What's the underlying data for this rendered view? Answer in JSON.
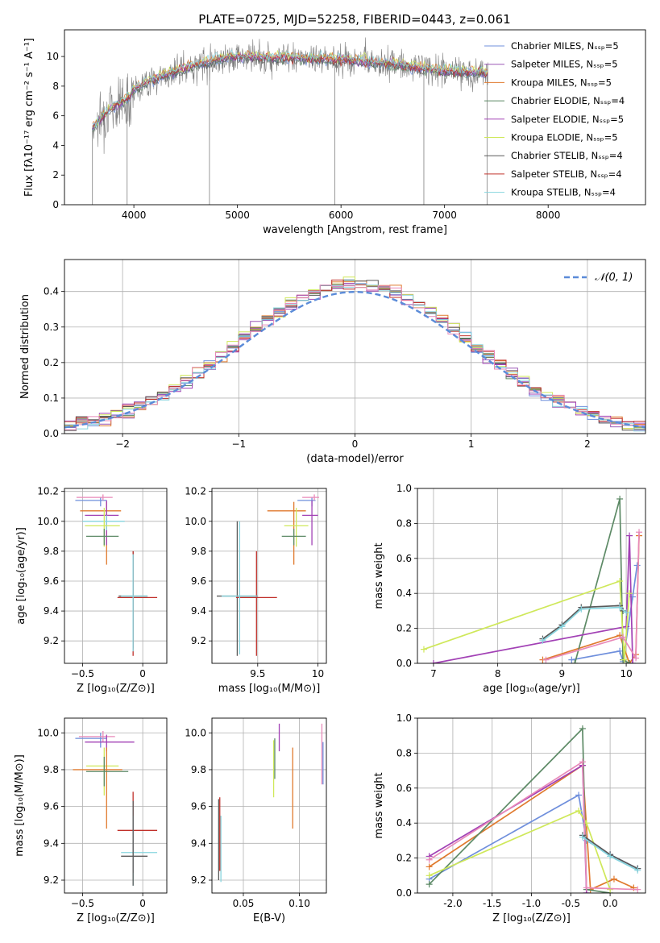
{
  "figure_title": "PLATE=0725, MJD=52258, FIBERID=0443, z=0.061",
  "series_colors": [
    "#6f8fdc",
    "#9b59b6",
    "#e07a2e",
    "#5d8a66",
    "#a241b5",
    "#cfe85a",
    "#5a5a5a",
    "#c0302a",
    "#86d4de",
    "#e88ab9"
  ],
  "chart_data": [
    {
      "id": "spectrum",
      "type": "line",
      "title": "PLATE=0725, MJD=52258, FIBERID=0443, z=0.061",
      "xlabel": "wavelength [Angstrom, rest frame]",
      "ylabel": "Flux [fλ10⁻¹⁷ erg cm⁻² s⁻¹ A⁻¹]",
      "xlim": [
        3330,
        8940
      ],
      "ylim": [
        0,
        11.8
      ],
      "xticks": [
        4000,
        5000,
        6000,
        7000,
        8000
      ],
      "yticks": [
        0,
        2,
        4,
        6,
        8,
        10
      ],
      "legend_position": "right",
      "legend": [
        {
          "label": "Chabrier MILES, Nₛₛₚ=5",
          "color": "#6f8fdc"
        },
        {
          "label": "Salpeter MILES, Nₛₛₚ=5",
          "color": "#9b59b6"
        },
        {
          "label": "Kroupa MILES, Nₛₛₚ=5",
          "color": "#e07a2e"
        },
        {
          "label": "Chabrier ELODIE, Nₛₛₚ=4",
          "color": "#5d8a66"
        },
        {
          "label": "Salpeter ELODIE, Nₛₛₚ=5",
          "color": "#a241b5"
        },
        {
          "label": "Kroupa ELODIE, Nₛₛₚ=5",
          "color": "#cfe85a"
        },
        {
          "label": "Chabrier STELIB, Nₛₛₚ=4",
          "color": "#5a5a5a"
        },
        {
          "label": "Salpeter STELIB, Nₛₛₚ=4",
          "color": "#c0302a"
        },
        {
          "label": "Kroupa STELIB, Nₛₛₚ=4",
          "color": "#86d4de"
        }
      ],
      "continuum_x": [
        3600,
        3700,
        3800,
        3900,
        3950,
        4000,
        4200,
        4500,
        4800,
        5000,
        5500,
        6000,
        6500,
        7000,
        7420
      ],
      "continuum_y": [
        5.2,
        6.0,
        6.6,
        7.0,
        7.2,
        7.8,
        8.5,
        9.2,
        9.8,
        10.0,
        9.9,
        9.8,
        9.5,
        9.0,
        8.9
      ],
      "wavelength_range": [
        3600,
        7420
      ]
    },
    {
      "id": "residuals",
      "type": "histogram",
      "xlabel": "(data-model)/error",
      "ylabel": "Normed distribution",
      "xlim": [
        -2.5,
        2.5
      ],
      "ylim": [
        0,
        0.49
      ],
      "xticks": [
        -2,
        -1,
        0,
        1,
        2
      ],
      "yticks": [
        0,
        0.1,
        0.2,
        0.3,
        0.4
      ],
      "legend": [
        {
          "label": "𝒩(0, 1)",
          "color": "#5b8bd8",
          "style": "dashed"
        }
      ],
      "bin_width": 0.1,
      "reference_curve": "normal(0, 1)"
    },
    {
      "id": "age-vs-Z",
      "type": "errorbar",
      "xlabel": "Z [log₁₀(Z/Z⊙)]",
      "ylabel": "age  [log₁₀(age/yr)]",
      "xlim": [
        -0.65,
        0.2
      ],
      "ylim": [
        9.05,
        10.22
      ],
      "xticks": [
        -0.5,
        0.0
      ],
      "yticks": [
        9.2,
        9.4,
        9.6,
        9.8,
        10.0,
        10.2
      ],
      "points": [
        {
          "x": -0.35,
          "xerr": [
            0.21,
            0.05
          ],
          "y": 10.14,
          "yerr": [
            0.04,
            0.02
          ],
          "color": "#6f8fdc"
        },
        {
          "x": -0.33,
          "xerr": [
            0.22,
            0.08
          ],
          "y": 10.16,
          "yerr": [
            0.02,
            0.02
          ],
          "color": "#e88ab9"
        },
        {
          "x": -0.3,
          "xerr": [
            0.22,
            0.12
          ],
          "y": 10.07,
          "yerr": [
            0.36,
            0.06
          ],
          "color": "#e07a2e"
        },
        {
          "x": -0.3,
          "xerr": [
            0.18,
            0.1
          ],
          "y": 10.04,
          "yerr": [
            0.2,
            0.1
          ],
          "color": "#a241b5"
        },
        {
          "x": -0.3,
          "xerr": [
            0.2,
            0.15
          ],
          "y": 10.0,
          "yerr": [
            0.06,
            0.04
          ],
          "color": "#86d4de"
        },
        {
          "x": -0.32,
          "xerr": [
            0.16,
            0.13
          ],
          "y": 9.97,
          "yerr": [
            0.14,
            0.12
          ],
          "color": "#cfe85a"
        },
        {
          "x": -0.32,
          "xerr": [
            0.15,
            0.12
          ],
          "y": 9.9,
          "yerr": [
            0.06,
            0.05
          ],
          "color": "#5d8a66"
        },
        {
          "x": -0.08,
          "xerr": [
            0.12,
            0.12
          ],
          "y": 9.5,
          "yerr": [
            0.35,
            0.3
          ],
          "color": "#5a5a5a"
        },
        {
          "x": -0.08,
          "xerr": [
            0.13,
            0.2
          ],
          "y": 9.49,
          "yerr": [
            0.39,
            0.31
          ],
          "color": "#c0302a"
        },
        {
          "x": -0.08,
          "xerr": [
            0.1,
            0.12
          ],
          "y": 9.5,
          "yerr": [
            0.37,
            0.28
          ],
          "color": "#86d4de"
        }
      ]
    },
    {
      "id": "age-vs-mass",
      "type": "errorbar",
      "xlabel": "mass [log₁₀(M/M⊙)]",
      "ylabel": "",
      "xlim": [
        9.12,
        10.07
      ],
      "ylim": [
        9.05,
        10.22
      ],
      "xticks": [
        9.5,
        10.0
      ],
      "yticks": [
        9.2,
        9.4,
        9.6,
        9.8,
        10.0,
        10.2
      ],
      "points": [
        {
          "x": 9.95,
          "xerr": [
            0.12,
            0.03
          ],
          "y": 10.14,
          "yerr": [
            0.04,
            0.02
          ],
          "color": "#6f8fdc"
        },
        {
          "x": 9.97,
          "xerr": [
            0.1,
            0.04
          ],
          "y": 10.16,
          "yerr": [
            0.02,
            0.02
          ],
          "color": "#e88ab9"
        },
        {
          "x": 9.8,
          "xerr": [
            0.22,
            0.1
          ],
          "y": 10.07,
          "yerr": [
            0.36,
            0.06
          ],
          "color": "#e07a2e"
        },
        {
          "x": 9.95,
          "xerr": [
            0.08,
            0.05
          ],
          "y": 10.04,
          "yerr": [
            0.2,
            0.1
          ],
          "color": "#a241b5"
        },
        {
          "x": 9.82,
          "xerr": [
            0.1,
            0.1
          ],
          "y": 9.97,
          "yerr": [
            0.14,
            0.12
          ],
          "color": "#cfe85a"
        },
        {
          "x": 9.8,
          "xerr": [
            0.1,
            0.1
          ],
          "y": 9.9,
          "yerr": [
            0.06,
            0.05
          ],
          "color": "#5d8a66"
        },
        {
          "x": 9.33,
          "xerr": [
            0.17,
            0.17
          ],
          "y": 9.5,
          "yerr": [
            0.4,
            0.5
          ],
          "color": "#5a5a5a"
        },
        {
          "x": 9.49,
          "xerr": [
            0.17,
            0.17
          ],
          "y": 9.49,
          "yerr": [
            0.39,
            0.31
          ],
          "color": "#c0302a"
        },
        {
          "x": 9.35,
          "xerr": [
            0.15,
            0.15
          ],
          "y": 9.5,
          "yerr": [
            0.39,
            0.5
          ],
          "color": "#86d4de"
        }
      ]
    },
    {
      "id": "mass-weight-vs-age",
      "type": "line",
      "xlabel": "age  [log₁₀(age/yr)]",
      "ylabel": "mass weight",
      "xlim": [
        6.75,
        10.3
      ],
      "ylim": [
        0,
        1.0
      ],
      "xticks": [
        7,
        8,
        9,
        10
      ],
      "yticks": [
        0.0,
        0.2,
        0.4,
        0.6,
        0.8,
        1.0
      ],
      "series": [
        {
          "color": "#6f8fdc",
          "x": [
            9.15,
            9.9,
            9.95,
            10.1,
            10.17
          ],
          "y": [
            0.02,
            0.07,
            0.01,
            0.38,
            0.56
          ]
        },
        {
          "color": "#e07a2e",
          "x": [
            8.7,
            9.9,
            10.05,
            10.15,
            10.2
          ],
          "y": [
            0.02,
            0.16,
            0.0,
            0.05,
            0.73
          ]
        },
        {
          "color": "#5d8a66",
          "x": [
            9.2,
            9.9,
            9.95,
            10.05
          ],
          "y": [
            0.0,
            0.94,
            0.02,
            0.0
          ]
        },
        {
          "color": "#a241b5",
          "x": [
            7.0,
            10.0,
            10.05,
            10.1
          ],
          "y": [
            0.0,
            0.21,
            0.73,
            0.0
          ]
        },
        {
          "color": "#cfe85a",
          "x": [
            6.85,
            9.9,
            9.97,
            10.05
          ],
          "y": [
            0.08,
            0.47,
            0.02,
            0.4
          ]
        },
        {
          "color": "#e88ab9",
          "x": [
            8.75,
            9.95,
            10.15,
            10.2
          ],
          "y": [
            0.02,
            0.15,
            0.03,
            0.75
          ]
        },
        {
          "color": "#5a5a5a",
          "x": [
            8.7,
            9.0,
            9.3,
            9.9,
            9.95
          ],
          "y": [
            0.14,
            0.22,
            0.32,
            0.33,
            0.3
          ]
        },
        {
          "color": "#86d4de",
          "x": [
            8.7,
            9.0,
            9.3,
            9.9,
            10.0
          ],
          "y": [
            0.13,
            0.21,
            0.31,
            0.32,
            0.29
          ]
        }
      ]
    },
    {
      "id": "mass-vs-Z",
      "type": "errorbar",
      "xlabel": "Z [log₁₀(Z/Z⊙)]",
      "ylabel": "mass [log₁₀(M/M⊙)]",
      "xlim": [
        -0.65,
        0.2
      ],
      "ylim": [
        9.13,
        10.08
      ],
      "xticks": [
        -0.5,
        0.0
      ],
      "yticks": [
        9.2,
        9.4,
        9.6,
        9.8,
        10.0
      ],
      "points": [
        {
          "x": -0.35,
          "xerr": [
            0.21,
            0.05
          ],
          "y": 9.97,
          "yerr": [
            0.05,
            0.03
          ],
          "color": "#6f8fdc"
        },
        {
          "x": -0.33,
          "xerr": [
            0.2,
            0.1
          ],
          "y": 9.98,
          "yerr": [
            0.03,
            0.03
          ],
          "color": "#e88ab9"
        },
        {
          "x": -0.3,
          "xerr": [
            0.18,
            0.23
          ],
          "y": 9.95,
          "yerr": [
            0.05,
            0.04
          ],
          "color": "#a241b5"
        },
        {
          "x": -0.32,
          "xerr": [
            0.15,
            0.12
          ],
          "y": 9.82,
          "yerr": [
            0.16,
            0.1
          ],
          "color": "#cfe85a"
        },
        {
          "x": -0.3,
          "xerr": [
            0.28,
            0.13
          ],
          "y": 9.8,
          "yerr": [
            0.32,
            0.12
          ],
          "color": "#e07a2e"
        },
        {
          "x": -0.32,
          "xerr": [
            0.15,
            0.2
          ],
          "y": 9.79,
          "yerr": [
            0.08,
            0.08
          ],
          "color": "#5d8a66"
        },
        {
          "x": -0.08,
          "xerr": [
            0.13,
            0.2
          ],
          "y": 9.47,
          "yerr": [
            0.23,
            0.21
          ],
          "color": "#c0302a"
        },
        {
          "x": -0.08,
          "xerr": [
            0.1,
            0.2
          ],
          "y": 9.35,
          "yerr": [
            0.18,
            0.2
          ],
          "color": "#86d4de"
        },
        {
          "x": -0.08,
          "xerr": [
            0.1,
            0.12
          ],
          "y": 9.33,
          "yerr": [
            0.16,
            0.3
          ],
          "color": "#5a5a5a"
        }
      ]
    },
    {
      "id": "mass-vs-ebv",
      "type": "errorbar",
      "xlabel": "E(B-V)",
      "ylabel": "",
      "xlim": [
        0.022,
        0.124
      ],
      "ylim": [
        9.13,
        10.08
      ],
      "xticks": [
        0.05,
        0.1
      ],
      "xtick_labels": [
        "0.05",
        "0.10"
      ],
      "yticks": [
        9.2,
        9.4,
        9.6,
        9.8,
        10.0
      ],
      "points": [
        {
          "x": 0.028,
          "y": 9.42,
          "yerr": [
            0.22,
            0.22
          ],
          "color": "#5a5a5a"
        },
        {
          "x": 0.029,
          "y": 9.47,
          "yerr": [
            0.22,
            0.18
          ],
          "color": "#c0302a"
        },
        {
          "x": 0.03,
          "y": 9.35,
          "yerr": [
            0.16,
            0.2
          ],
          "color": "#86d4de"
        },
        {
          "x": 0.077,
          "y": 9.8,
          "yerr": [
            0.15,
            0.16
          ],
          "color": "#cfe85a"
        },
        {
          "x": 0.078,
          "y": 9.85,
          "yerr": [
            0.1,
            0.12
          ],
          "color": "#5d8a66"
        },
        {
          "x": 0.082,
          "y": 9.95,
          "yerr": [
            0.05,
            0.1
          ],
          "color": "#a241b5"
        },
        {
          "x": 0.094,
          "y": 9.7,
          "yerr": [
            0.22,
            0.22
          ],
          "color": "#e07a2e"
        },
        {
          "x": 0.12,
          "y": 9.88,
          "yerr": [
            0.16,
            0.17
          ],
          "color": "#e88ab9"
        },
        {
          "x": 0.121,
          "y": 9.85,
          "yerr": [
            0.13,
            0.1
          ],
          "color": "#6f8fdc"
        }
      ]
    },
    {
      "id": "mass-weight-vs-Z",
      "type": "line",
      "xlabel": "Z [log₁₀(Z/Z⊙)]",
      "ylabel": "mass weight",
      "xlim": [
        -2.45,
        0.45
      ],
      "ylim": [
        0,
        1.0
      ],
      "xticks": [
        -2.0,
        -1.5,
        -1.0,
        -0.5,
        0.0
      ],
      "yticks": [
        0.0,
        0.2,
        0.4,
        0.6,
        0.8,
        1.0
      ],
      "series": [
        {
          "color": "#6f8fdc",
          "x": [
            -2.3,
            -0.4,
            -0.3,
            0.0,
            0.35
          ],
          "y": [
            0.08,
            0.56,
            0.3,
            0.22,
            0.14
          ]
        },
        {
          "color": "#e07a2e",
          "x": [
            -2.3,
            -0.35,
            -0.25,
            0.05,
            0.3
          ],
          "y": [
            0.15,
            0.73,
            0.02,
            0.08,
            0.03
          ]
        },
        {
          "color": "#5d8a66",
          "x": [
            -2.3,
            -0.35,
            -0.3,
            0.0
          ],
          "y": [
            0.05,
            0.94,
            0.02,
            0.0
          ]
        },
        {
          "color": "#a241b5",
          "x": [
            -2.3,
            -0.35,
            -0.3,
            -0.3
          ],
          "y": [
            0.21,
            0.73,
            0.0,
            0.0
          ]
        },
        {
          "color": "#cfe85a",
          "x": [
            -2.3,
            -0.4,
            -0.3,
            0.0
          ],
          "y": [
            0.1,
            0.47,
            0.4,
            0.02
          ]
        },
        {
          "color": "#e88ab9",
          "x": [
            -2.3,
            -0.35,
            -0.3,
            0.35
          ],
          "y": [
            0.19,
            0.75,
            0.03,
            0.02
          ]
        },
        {
          "color": "#5a5a5a",
          "x": [
            -0.35,
            0.0,
            0.35
          ],
          "y": [
            0.33,
            0.22,
            0.14
          ]
        },
        {
          "color": "#86d4de",
          "x": [
            -0.35,
            0.0,
            0.35
          ],
          "y": [
            0.32,
            0.21,
            0.13
          ]
        }
      ]
    }
  ]
}
